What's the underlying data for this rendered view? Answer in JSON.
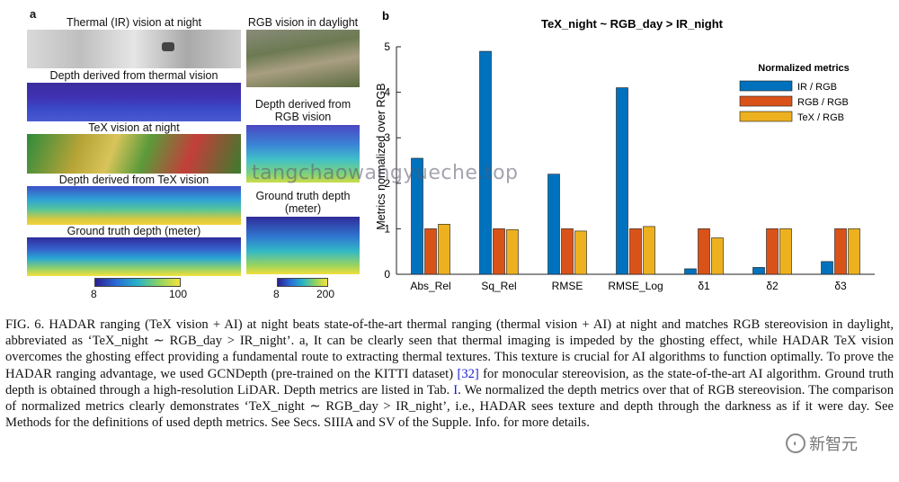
{
  "panel_a": {
    "letter": "a",
    "labels": {
      "ir_night": "Thermal (IR) vision at night",
      "rgb_day": "RGB vision in daylight",
      "ir_depth": "Depth derived from thermal vision",
      "rgb_depth_line1": "Depth derived from",
      "rgb_depth_line2": "RGB vision",
      "tex_night": "TeX vision at night",
      "tex_depth": "Depth derived from TeX vision",
      "gt_right_line1": "Ground truth depth",
      "gt_right_line2": "(meter)",
      "gt_left": "Ground truth depth (meter)"
    },
    "colorbar_left": {
      "min": "8",
      "max": "100"
    },
    "colorbar_right": {
      "min": "8",
      "max": "200"
    }
  },
  "watermark": "tangchaowangyueche.top",
  "chart_data": {
    "type": "bar",
    "panel_letter": "b",
    "title": "TeX_night ~ RGB_day > IR_night",
    "xlabel": "",
    "ylabel": "Metrics normalized over RGB",
    "ylim": [
      0,
      5
    ],
    "yticks": [
      "0",
      "1",
      "2",
      "3",
      "4",
      "5"
    ],
    "categories": [
      "Abs_Rel",
      "Sq_Rel",
      "RMSE",
      "RMSE_Log",
      "δ1",
      "δ2",
      "δ3"
    ],
    "legend_title": "Normalized metrics",
    "legend_position": "top-right",
    "series": [
      {
        "name": "IR / RGB",
        "color": "#0072BD",
        "values": [
          2.55,
          4.9,
          2.2,
          4.1,
          0.12,
          0.15,
          0.28
        ]
      },
      {
        "name": "RGB / RGB",
        "color": "#D95319",
        "values": [
          1.0,
          1.0,
          1.0,
          1.0,
          1.0,
          1.0,
          1.0
        ]
      },
      {
        "name": "TeX / RGB",
        "color": "#EDB120",
        "values": [
          1.1,
          0.98,
          0.95,
          1.05,
          0.8,
          1.0,
          1.0
        ]
      }
    ]
  },
  "caption": {
    "p1": "FIG. 6. HADAR ranging (TeX vision + AI) at night beats state-of-the-art thermal ranging (thermal vision + AI) at night and matches RGB stereovision in daylight, abbreviated as ‘TeX_night ∼ RGB_day > IR_night’. a, It can be clearly seen that thermal imaging is impeded by the ghosting effect, while HADAR TeX vision overcomes the ghosting effect providing a fundamental route to extracting thermal textures. This texture is crucial for AI algorithms to function optimally. To prove the HADAR ranging advantage, we used GCNDepth (pre-trained on the KITTI dataset) ",
    "ref1": "[32]",
    "p2": " for monocular stereovision, as the state-of-the-art AI algorithm. Ground truth depth is obtained through a high-resolution LiDAR. Depth metrics are listed in Tab. ",
    "ref2": "I",
    "p3": ". We normalized the depth metrics over that of RGB stereovision. The comparison of normalized metrics clearly demonstrates ‘TeX_night ∼ RGB_day > IR_night’, i.e., HADAR sees texture and depth through the darkness as if it were day. See Methods for the definitions of used depth metrics. See Secs. SIIIA and SV of the Supple. Info. for more details."
  },
  "logo": {
    "text": "新智元",
    "icon": "logo-circle-icon"
  }
}
